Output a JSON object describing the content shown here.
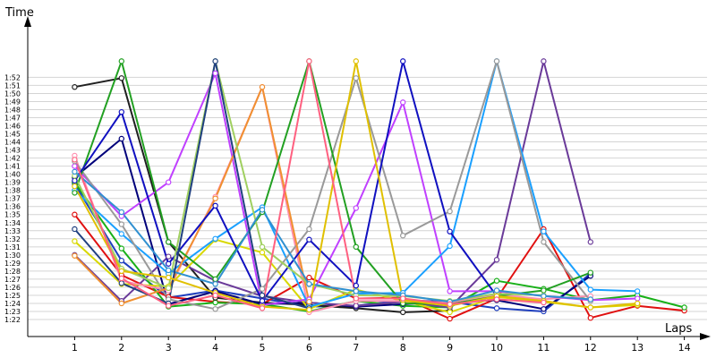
{
  "chart_data": {
    "type": "line",
    "ylabel": "Time",
    "xlabel": "Laps",
    "x_range": [
      0,
      14
    ],
    "y_range_seconds": [
      81,
      113.5
    ],
    "x_ticks": [
      "1",
      "2",
      "3",
      "4",
      "5",
      "6",
      "7",
      "8",
      "9",
      "10",
      "11",
      "12",
      "13",
      "14"
    ],
    "y_ticks": [
      "1:22",
      "1:23",
      "1:24",
      "1:25",
      "1:26",
      "1:27",
      "1:28",
      "1:29",
      "1:30",
      "1:31",
      "1:32",
      "1:33",
      "1:34",
      "1:35",
      "1:36",
      "1:37",
      "1:38",
      "1:39",
      "1:40",
      "1:41",
      "1:42",
      "1:43",
      "1:44",
      "1:45",
      "1:46",
      "1:47",
      "1:48",
      "1:49",
      "1:50",
      "1:51",
      "1:52"
    ],
    "grid": true,
    "series": [
      {
        "color": "#1f3fbf",
        "x": [
          1,
          2,
          3,
          4,
          5,
          6,
          7,
          8,
          9,
          10,
          11,
          12
        ],
        "y": [
          98.8,
          89.3,
          84.7,
          85.6,
          84.6,
          83.6,
          83.7,
          84.4,
          84.2,
          83.4,
          83.0,
          87.7
        ]
      },
      {
        "color": "#e01010",
        "x": [
          1,
          2,
          3,
          4,
          5,
          6,
          7,
          8,
          9,
          10,
          11,
          12,
          13,
          14
        ],
        "y": [
          95.0,
          87.5,
          84.8,
          84.2,
          83.9,
          87.2,
          84.6,
          84.7,
          82.1,
          84.6,
          93.2,
          82.2,
          83.7,
          83.1
        ]
      },
      {
        "color": "#18b018",
        "x": [
          1,
          2,
          3,
          4,
          5,
          6,
          7,
          8,
          9,
          10,
          11,
          12,
          13,
          14
        ],
        "y": [
          99.0,
          90.8,
          83.6,
          84.1,
          83.9,
          83.0,
          84.3,
          83.7,
          83.5,
          86.8,
          85.8,
          84.4,
          85.0,
          83.5
        ]
      },
      {
        "color": "#202020",
        "x": [
          1,
          2,
          3,
          4,
          5,
          6,
          7,
          8,
          9
        ],
        "y": [
          110.8,
          111.9,
          91.6,
          84.7,
          84.1,
          83.8,
          83.4,
          82.9,
          83.1
        ]
      },
      {
        "color": "#00007a",
        "x": [
          1,
          2,
          3,
          4,
          5,
          6,
          7,
          8,
          9,
          10,
          11,
          12
        ],
        "y": [
          99.6,
          104.4,
          83.9,
          85.5,
          83.9,
          84.1,
          83.6,
          83.9,
          84.2,
          84.4,
          83.3,
          87.4
        ]
      },
      {
        "color": "#6a3a99",
        "x": [
          1,
          2,
          3,
          4,
          5,
          6,
          7,
          8,
          9,
          10,
          11,
          12
        ],
        "y": [
          90.0,
          84.3,
          89.8,
          86.8,
          84.9,
          84.1,
          83.7,
          84.2,
          83.5,
          89.4,
          114,
          91.6
        ]
      },
      {
        "color": "#d8d800",
        "x": [
          1,
          2,
          3,
          4,
          5,
          6,
          7,
          8,
          9,
          10,
          11,
          12,
          13
        ],
        "y": [
          91.7,
          86.4,
          86.1,
          91.9,
          90.3,
          83.3,
          85.7,
          84.3,
          82.9,
          84.8,
          84.2,
          83.5,
          83.8
        ]
      },
      {
        "color": "#ff8fb0",
        "x": [
          1,
          2,
          3,
          4,
          5,
          6,
          7,
          8,
          9,
          10,
          11,
          12
        ],
        "y": [
          102.3,
          86.8,
          85.6,
          97.2,
          110.8,
          82.9,
          84.3,
          84.3,
          84.1,
          85.1,
          84.5,
          84.9
        ]
      },
      {
        "color": "#c040ff",
        "x": [
          1,
          2,
          3,
          4,
          5,
          6,
          7,
          8,
          9,
          10,
          11,
          12,
          13
        ],
        "y": [
          101.0,
          94.8,
          99.0,
          112.5,
          83.8,
          84.5,
          95.8,
          108.9,
          85.5,
          85.5,
          84.9,
          84.4,
          84.6
        ]
      },
      {
        "color": "#1aa0ff",
        "x": [
          1,
          2,
          3,
          4,
          5,
          6,
          7,
          8,
          9,
          10,
          11,
          12,
          13
        ],
        "y": [
          98.0,
          92.6,
          87.7,
          92.0,
          95.9,
          83.6,
          85.2,
          85.3,
          91.1,
          114,
          92.9,
          85.7,
          85.5
        ]
      },
      {
        "color": "#999999",
        "x": [
          1,
          2,
          3,
          4,
          5,
          6,
          7,
          8,
          9,
          10,
          11,
          12
        ],
        "y": [
          101.6,
          93.8,
          84.5,
          83.3,
          85.8,
          93.2,
          111.9,
          92.4,
          95.4,
          114,
          91.6,
          84.3
        ]
      },
      {
        "color": "#f09030",
        "x": [
          1,
          2,
          3,
          4,
          5,
          6
        ],
        "y": [
          89.9,
          84.0,
          85.9,
          97.0,
          110.8,
          84.2
        ]
      },
      {
        "color": "#22a022",
        "x": [
          1,
          2,
          3,
          4,
          5,
          6,
          7,
          8,
          9,
          10,
          11,
          12
        ],
        "y": [
          97.7,
          114,
          91.6,
          87.0,
          95.3,
          114,
          91.0,
          84.0,
          83.9,
          84.9,
          85.6,
          87.8
        ]
      },
      {
        "color": "#1010c0",
        "x": [
          1,
          2,
          3,
          4,
          5,
          6,
          7,
          8,
          9,
          10
        ],
        "y": [
          99.2,
          107.7,
          88.9,
          96.1,
          84.3,
          91.9,
          86.2,
          114,
          92.9,
          84.9
        ]
      },
      {
        "color": "#a0d060",
        "x": [
          1,
          2,
          3,
          4,
          5,
          6,
          7,
          8,
          9,
          10,
          11
        ],
        "y": [
          99.8,
          88.3,
          85.9,
          114,
          91.0,
          86.4,
          85.0,
          84.9,
          84.3,
          85.2,
          85.0
        ]
      },
      {
        "color": "#3090d0",
        "x": [
          1,
          2,
          3,
          4,
          5,
          6,
          7,
          8,
          9,
          10,
          11,
          12
        ],
        "y": [
          100.3,
          95.3,
          88.1,
          86.4,
          95.6,
          86.4,
          85.5,
          85.0,
          84.2,
          85.6,
          84.9,
          84.5
        ]
      },
      {
        "color": "#204080",
        "x": [
          1,
          2,
          3,
          4,
          5,
          6
        ],
        "y": [
          93.2,
          86.5,
          84.0,
          114,
          85.0,
          83.4
        ]
      },
      {
        "color": "#e0c000",
        "x": [
          1,
          2,
          3,
          4,
          5,
          6,
          7,
          8,
          9,
          10,
          11,
          12,
          13
        ],
        "y": [
          98.5,
          88.0,
          87.2,
          85.3,
          83.6,
          83.2,
          114,
          84.4,
          83.7,
          84.9,
          84.3,
          83.5,
          84.0
        ]
      },
      {
        "color": "#ff6080",
        "x": [
          1,
          2,
          3,
          4,
          5,
          6,
          7,
          8,
          9,
          10,
          11
        ],
        "y": [
          101.8,
          87.1,
          83.7,
          85.0,
          83.4,
          114,
          84.6,
          84.6,
          83.9,
          84.5,
          84.1
        ]
      }
    ]
  }
}
